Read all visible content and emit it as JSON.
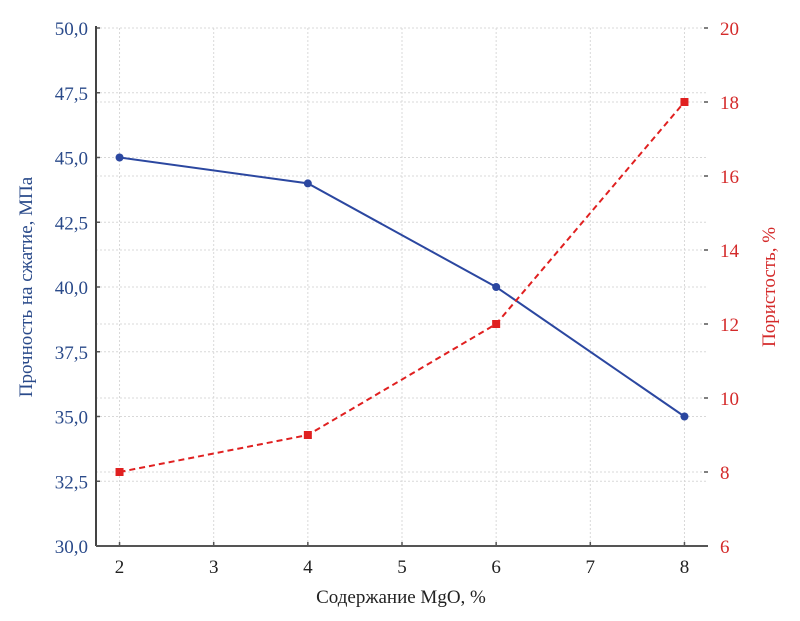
{
  "chart_data": {
    "type": "line",
    "title": "",
    "xlabel": "Содержание MgO, %",
    "ylabel": "Прочность на сжатие, МПа",
    "y2label": "Пористость, %",
    "xlim": [
      1.75,
      8.25
    ],
    "ylim": [
      30,
      50
    ],
    "y2lim": [
      6,
      20
    ],
    "x_ticks": [
      2,
      3,
      4,
      5,
      6,
      7,
      8
    ],
    "x_tick_labels": [
      "2",
      "3",
      "4",
      "5",
      "6",
      "7",
      "8"
    ],
    "y_ticks": [
      30,
      32.5,
      35,
      37.5,
      40,
      42.5,
      45,
      47.5,
      50
    ],
    "y_tick_labels": [
      "30,0",
      "32,5",
      "35,0",
      "37,5",
      "40,0",
      "42,5",
      "45,0",
      "47,5",
      "50,0"
    ],
    "y2_ticks": [
      6,
      8,
      10,
      12,
      14,
      16,
      18,
      20
    ],
    "y2_tick_labels": [
      "6",
      "8",
      "10",
      "12",
      "14",
      "16",
      "18",
      "20"
    ],
    "grid": true,
    "series": [
      {
        "name": "Прочность на сжатие",
        "axis": "left",
        "x": [
          2,
          4,
          6,
          8
        ],
        "values": [
          45,
          44,
          40,
          35
        ],
        "color": "#2b47a0",
        "style": "solid",
        "marker": "circle"
      },
      {
        "name": "Пористость",
        "axis": "right",
        "x": [
          2,
          4,
          6,
          8
        ],
        "values": [
          8,
          9,
          12,
          18
        ],
        "color": "#e02020",
        "style": "dashed",
        "marker": "square"
      }
    ]
  }
}
